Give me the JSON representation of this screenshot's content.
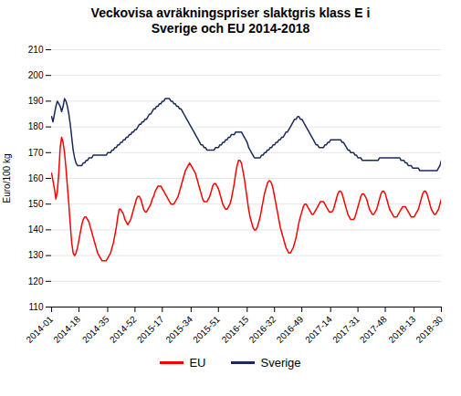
{
  "chart_data": {
    "type": "line",
    "title": "Veckovisa avräkningspriser slaktgris klass E i\nSverige och EU 2014-2018",
    "ylabel": "Euro/100 kg",
    "categories": [
      "2014-01",
      null,
      null,
      null,
      null,
      null,
      null,
      null,
      null,
      null,
      null,
      null,
      null,
      null,
      null,
      null,
      null,
      null,
      null,
      "2014-18",
      null,
      null,
      null,
      null,
      null,
      null,
      null,
      null,
      null,
      null,
      null,
      null,
      null,
      null,
      null,
      null,
      null,
      null,
      null,
      "2014-35",
      null,
      null,
      null,
      null,
      null,
      null,
      null,
      null,
      null,
      null,
      null,
      null,
      null,
      null,
      null,
      null,
      null,
      null,
      "2014-52",
      null,
      null,
      null,
      null,
      null,
      null,
      null,
      null,
      null,
      null,
      null,
      null,
      null,
      null,
      null,
      null,
      null,
      null,
      "2015-17",
      null,
      null,
      null,
      null,
      null,
      null,
      null,
      null,
      null,
      null,
      null,
      null,
      null,
      null,
      null,
      null,
      null,
      null,
      null,
      "2015-34",
      null,
      null,
      null,
      null,
      null,
      null,
      null,
      null,
      null,
      null,
      null,
      null,
      null,
      null,
      null,
      null,
      null,
      null,
      "2015-51",
      null,
      null,
      null,
      null,
      null,
      null,
      null,
      null,
      null,
      null,
      null,
      null,
      null,
      null,
      null,
      null,
      null,
      null,
      null,
      "2016-15",
      null,
      null,
      null,
      null,
      null,
      null,
      null,
      null,
      null,
      null,
      null,
      null,
      null,
      null,
      null,
      null,
      null,
      null,
      "2016-32",
      null,
      null,
      null,
      null,
      null,
      null,
      null,
      null,
      null,
      null,
      null,
      null,
      null,
      null,
      null,
      null,
      null,
      null,
      "2016-49",
      null,
      null,
      null,
      null,
      null,
      null,
      null,
      null,
      null,
      null,
      null,
      null,
      null,
      null,
      null,
      null,
      null,
      null,
      null,
      "2017-14",
      null,
      null,
      null,
      null,
      null,
      null,
      null,
      null,
      null,
      null,
      null,
      null,
      null,
      null,
      null,
      null,
      null,
      null,
      "2017-31",
      null,
      null,
      null,
      null,
      null,
      null,
      null,
      null,
      null,
      null,
      null,
      null,
      null,
      null,
      null,
      null,
      null,
      null,
      "2017-48",
      null,
      null,
      null,
      null,
      null,
      null,
      null,
      null,
      null,
      null,
      null,
      null,
      null,
      null,
      null,
      null,
      null,
      null,
      null,
      "2018-13",
      null,
      null,
      null,
      null,
      null,
      null,
      null,
      null,
      null,
      null,
      null,
      null,
      null,
      null,
      null,
      null,
      null,
      null,
      "2018-30"
    ],
    "series": [
      {
        "name": "EU",
        "color": "#ff0000",
        "values": [
          162,
          159,
          156,
          152,
          155,
          162,
          172,
          176,
          174,
          170,
          164,
          157,
          150,
          142,
          135,
          131,
          130,
          131,
          133,
          136,
          139,
          142,
          144,
          145,
          145,
          144,
          143,
          141,
          139,
          137,
          135,
          133,
          131,
          130,
          129,
          128,
          128,
          128,
          128,
          129,
          130,
          131,
          133,
          135,
          138,
          141,
          145,
          148,
          148,
          147,
          146,
          144,
          143,
          142,
          143,
          144,
          146,
          148,
          150,
          152,
          153,
          153,
          152,
          150,
          148,
          147,
          147,
          148,
          149,
          150,
          152,
          153,
          155,
          156,
          157,
          157,
          157,
          156,
          155,
          154,
          153,
          152,
          151,
          150,
          150,
          150,
          151,
          152,
          153,
          155,
          157,
          159,
          161,
          163,
          164,
          165,
          166,
          165,
          164,
          163,
          162,
          160,
          158,
          156,
          154,
          152,
          151,
          151,
          151,
          152,
          153,
          155,
          157,
          158,
          158,
          157,
          156,
          154,
          152,
          150,
          149,
          148,
          148,
          149,
          150,
          152,
          155,
          158,
          162,
          165,
          167,
          167,
          166,
          163,
          160,
          156,
          152,
          148,
          145,
          143,
          141,
          140,
          140,
          141,
          143,
          145,
          148,
          151,
          154,
          156,
          158,
          159,
          159,
          158,
          156,
          153,
          150,
          147,
          144,
          141,
          139,
          137,
          135,
          133,
          132,
          131,
          131,
          132,
          133,
          135,
          137,
          140,
          143,
          145,
          147,
          149,
          150,
          150,
          149,
          148,
          147,
          146,
          146,
          147,
          148,
          149,
          150,
          151,
          151,
          151,
          150,
          149,
          148,
          147,
          147,
          147,
          148,
          150,
          152,
          154,
          155,
          155,
          154,
          152,
          150,
          148,
          146,
          145,
          144,
          144,
          144,
          145,
          147,
          149,
          151,
          153,
          154,
          154,
          153,
          152,
          150,
          148,
          147,
          146,
          146,
          147,
          148,
          150,
          152,
          154,
          155,
          155,
          154,
          152,
          150,
          148,
          147,
          146,
          145,
          145,
          145,
          146,
          147,
          148,
          149,
          149,
          149,
          148,
          147,
          146,
          145,
          145,
          145,
          146,
          147,
          148,
          150,
          152,
          154,
          155,
          155,
          154,
          152,
          150,
          148,
          147,
          146,
          146,
          147,
          148,
          150,
          152
        ]
      },
      {
        "name": "Sverige",
        "color": "#1a2a5e",
        "values": [
          184,
          182,
          185,
          188,
          190,
          189,
          188,
          186,
          188,
          191,
          190,
          188,
          185,
          181,
          176,
          171,
          168,
          166,
          165,
          165,
          165,
          165,
          166,
          166,
          167,
          167,
          168,
          168,
          168,
          169,
          169,
          169,
          169,
          169,
          169,
          169,
          169,
          169,
          169,
          170,
          170,
          170,
          171,
          171,
          172,
          172,
          173,
          173,
          174,
          174,
          175,
          175,
          176,
          176,
          177,
          177,
          178,
          178,
          179,
          179,
          180,
          181,
          181,
          182,
          182,
          183,
          183,
          184,
          185,
          185,
          186,
          187,
          187,
          188,
          188,
          189,
          189,
          190,
          190,
          191,
          191,
          191,
          191,
          190,
          190,
          189,
          189,
          188,
          188,
          187,
          187,
          186,
          185,
          184,
          183,
          182,
          181,
          180,
          179,
          178,
          177,
          176,
          175,
          174,
          173,
          173,
          172,
          172,
          171,
          171,
          171,
          171,
          171,
          171,
          172,
          172,
          172,
          173,
          173,
          174,
          174,
          175,
          175,
          176,
          176,
          177,
          177,
          177,
          178,
          178,
          178,
          178,
          178,
          177,
          176,
          175,
          174,
          172,
          171,
          170,
          169,
          168,
          168,
          168,
          168,
          168,
          169,
          169,
          170,
          170,
          171,
          171,
          172,
          172,
          173,
          173,
          174,
          174,
          175,
          175,
          176,
          176,
          177,
          178,
          178,
          179,
          180,
          181,
          182,
          183,
          183,
          184,
          184,
          183,
          183,
          182,
          181,
          180,
          179,
          178,
          177,
          176,
          175,
          174,
          173,
          173,
          172,
          172,
          172,
          172,
          173,
          173,
          174,
          174,
          175,
          175,
          175,
          175,
          175,
          175,
          175,
          175,
          174,
          174,
          173,
          172,
          171,
          171,
          170,
          170,
          170,
          169,
          169,
          168,
          168,
          168,
          167,
          167,
          167,
          167,
          167,
          167,
          167,
          167,
          167,
          167,
          167,
          167,
          168,
          168,
          168,
          168,
          168,
          168,
          168,
          168,
          168,
          168,
          168,
          168,
          168,
          168,
          168,
          167,
          167,
          167,
          166,
          166,
          165,
          165,
          165,
          164,
          164,
          164,
          164,
          164,
          163,
          163,
          163,
          163,
          163,
          163,
          163,
          163,
          163,
          163,
          163,
          163,
          163,
          164,
          165,
          167
        ]
      }
    ],
    "ylim": [
      110,
      210
    ],
    "yticks": [
      110,
      120,
      130,
      140,
      150,
      160,
      170,
      180,
      190,
      200,
      210
    ],
    "grid": true,
    "legend": "bottom"
  }
}
